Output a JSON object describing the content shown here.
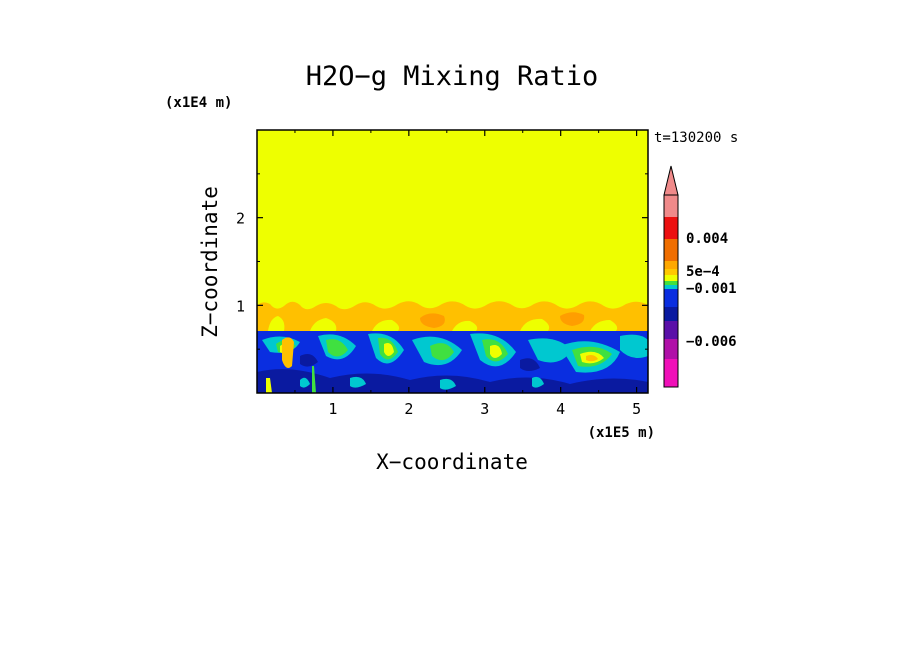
{
  "chart_data": {
    "type": "heatmap",
    "title": "H2O−g Mixing Ratio",
    "xlabel": "X−coordinate",
    "ylabel": "Z−coordinate",
    "x_scale_label": "(x1E5 m)",
    "y_scale_label": "(x1E4 m)",
    "time_label": "t=130200 s",
    "xlim": [
      0,
      5.15
    ],
    "ylim": [
      0,
      3.0
    ],
    "x_ticks": [
      1,
      2,
      3,
      4,
      5
    ],
    "y_ticks": [
      1,
      2
    ],
    "x_tick_labels": [
      "1",
      "2",
      "3",
      "4",
      "5"
    ],
    "y_tick_labels": [
      "1",
      "2"
    ],
    "field_regions": {
      "upper_layer": {
        "z_range": [
          1.0,
          3.0
        ],
        "color": "#eeff00"
      },
      "transition_layer": {
        "z_range": [
          0.72,
          1.05
        ],
        "colors": [
          "#ffc000",
          "#eeff00"
        ]
      },
      "lower_layer": {
        "z_range": [
          0,
          0.72
        ],
        "colors": [
          "#0a2ee0",
          "#0a1aa0",
          "#00c8d0",
          "#40e040",
          "#eeff00",
          "#ffc000"
        ]
      }
    },
    "colorbar": {
      "extend": "max",
      "levels_top_to_bottom": [
        {
          "color": "#f08a8a"
        },
        {
          "color": "#ec1010"
        },
        {
          "color": "#f06e00"
        },
        {
          "color": "#ffa800"
        },
        {
          "color": "#ffc800"
        },
        {
          "color": "#eeff00"
        },
        {
          "color": "#40e040"
        },
        {
          "color": "#00c8d0"
        },
        {
          "color": "#0a2ee0"
        },
        {
          "color": "#0a1aa0"
        },
        {
          "color": "#5a10a8"
        },
        {
          "color": "#b010a8"
        },
        {
          "color": "#f010b8"
        }
      ],
      "tick_labels": [
        {
          "text": "0.004",
          "at": 0.004
        },
        {
          "text": "5e−4",
          "at": 0.0005
        },
        {
          "text": "−0.001",
          "at": -0.001
        },
        {
          "text": "−0.006",
          "at": -0.006
        }
      ]
    }
  }
}
